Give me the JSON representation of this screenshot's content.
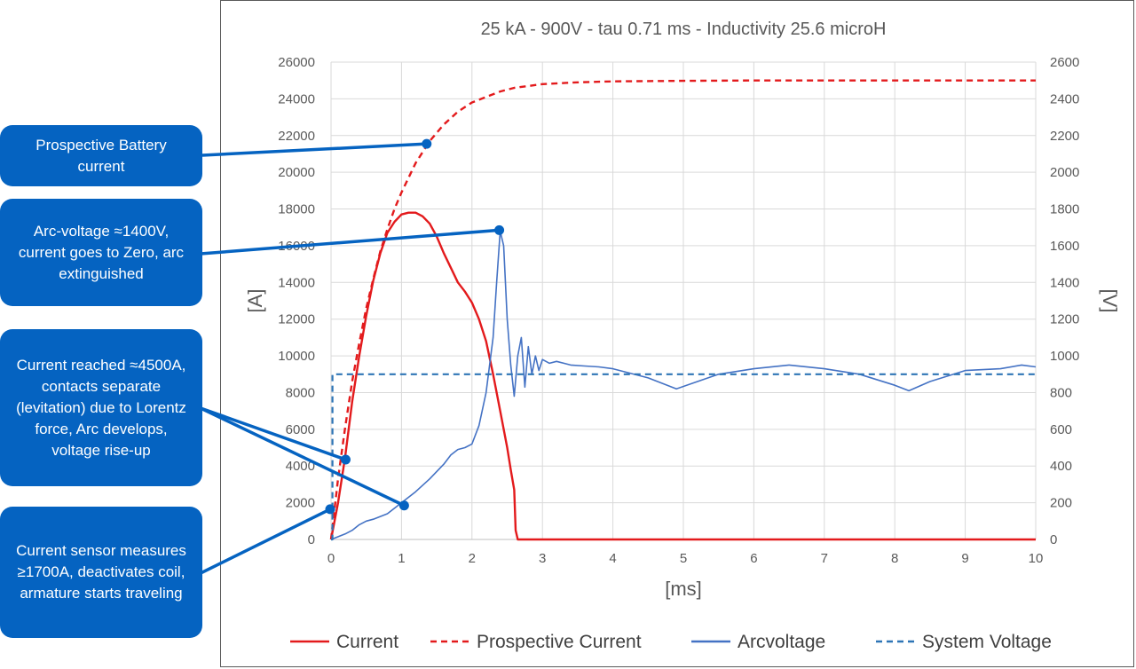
{
  "callouts": {
    "prospective": "Prospective Battery current",
    "arc_voltage": "Arc-voltage ≈1400V, current goes to Zero, arc extinguished",
    "current_reached": "Current reached ≈4500A, contacts separate (levitation) due to Lorentz force, Arc develops, voltage rise-up",
    "sensor": "Current sensor measures ≥1700A, deactivates coil, armature starts traveling"
  },
  "colors": {
    "current": "#E31A1C",
    "prospective": "#E31A1C",
    "arcvoltage": "#4472C4",
    "system": "#2E75B6",
    "callout": "#0563C1",
    "grid": "#D9D9D9"
  },
  "chart_data": {
    "type": "line",
    "title": "25 kA - 900V - tau 0.71 ms - Inductivity 25.6 microH",
    "xlabel": "[ms]",
    "ylabel": "[A]",
    "y2label": "[V]",
    "xlim": [
      0,
      10
    ],
    "ylim": [
      0,
      26000
    ],
    "y2lim": [
      0,
      2600
    ],
    "x_ticks": [
      "0",
      "1",
      "2",
      "3",
      "4",
      "5",
      "6",
      "7",
      "8",
      "9",
      "10"
    ],
    "y_ticks": [
      "0",
      "2000",
      "4000",
      "6000",
      "8000",
      "10000",
      "12000",
      "14000",
      "16000",
      "18000",
      "20000",
      "22000",
      "24000",
      "26000"
    ],
    "y2_ticks": [
      "0",
      "200",
      "400",
      "600",
      "800",
      "1000",
      "1200",
      "1400",
      "1600",
      "1800",
      "2000",
      "2200",
      "2400",
      "2600"
    ],
    "grid": "horizontal",
    "legend_position": "bottom",
    "series": [
      {
        "name": "Current",
        "axis": "left",
        "style": "solid",
        "x": [
          0,
          0.1,
          0.2,
          0.3,
          0.4,
          0.5,
          0.6,
          0.7,
          0.8,
          0.9,
          1.0,
          1.1,
          1.2,
          1.3,
          1.4,
          1.5,
          1.6,
          1.7,
          1.8,
          1.9,
          2.0,
          2.1,
          2.2,
          2.3,
          2.4,
          2.5,
          2.55,
          2.6,
          2.62,
          2.65,
          3,
          4,
          5,
          6,
          7,
          8,
          9,
          10
        ],
        "y": [
          0,
          2000,
          4500,
          7500,
          10000,
          12200,
          14100,
          15600,
          16700,
          17300,
          17700,
          17800,
          17800,
          17600,
          17200,
          16500,
          15600,
          14800,
          14000,
          13500,
          12900,
          12000,
          10800,
          9000,
          7000,
          5000,
          3800,
          2700,
          500,
          0,
          0,
          0,
          0,
          0,
          0,
          0,
          0,
          0
        ]
      },
      {
        "name": "Prospective Current",
        "axis": "left",
        "style": "dashed",
        "x": [
          0,
          0.1,
          0.2,
          0.3,
          0.4,
          0.5,
          0.6,
          0.7,
          0.8,
          0.9,
          1.0,
          1.2,
          1.4,
          1.6,
          1.8,
          2.0,
          2.2,
          2.4,
          2.6,
          2.8,
          3.0,
          3.5,
          4.0,
          5.0,
          6.0,
          7.0,
          8.0,
          9.0,
          10.0
        ],
        "y": [
          0,
          3300,
          6100,
          8600,
          10700,
          12600,
          14200,
          15700,
          16900,
          18000,
          18900,
          20500,
          21700,
          22600,
          23300,
          23800,
          24100,
          24400,
          24600,
          24700,
          24800,
          24900,
          24950,
          24980,
          25000,
          25000,
          25000,
          25000,
          25000
        ]
      },
      {
        "name": "Arcvoltage",
        "axis": "right",
        "style": "solid",
        "x": [
          0,
          0.2,
          0.3,
          0.4,
          0.5,
          0.6,
          0.8,
          1.0,
          1.2,
          1.4,
          1.6,
          1.7,
          1.8,
          1.9,
          2.0,
          2.1,
          2.2,
          2.3,
          2.35,
          2.4,
          2.45,
          2.5,
          2.55,
          2.6,
          2.65,
          2.7,
          2.75,
          2.8,
          2.85,
          2.9,
          2.95,
          3.0,
          3.1,
          3.2,
          3.4,
          3.6,
          3.8,
          4.0,
          4.5,
          4.9,
          5.2,
          5.5,
          6.0,
          6.5,
          7.0,
          7.5,
          8.0,
          8.2,
          8.5,
          9.0,
          9.5,
          9.8,
          10.0
        ],
        "y": [
          0,
          30,
          50,
          80,
          100,
          110,
          140,
          200,
          260,
          330,
          410,
          460,
          490,
          500,
          520,
          620,
          800,
          1100,
          1400,
          1680,
          1600,
          1200,
          950,
          780,
          1000,
          1100,
          830,
          1050,
          900,
          1000,
          920,
          980,
          960,
          970,
          950,
          945,
          940,
          930,
          880,
          820,
          860,
          900,
          930,
          950,
          930,
          900,
          840,
          810,
          860,
          920,
          930,
          950,
          940
        ]
      },
      {
        "name": "System Voltage",
        "axis": "right",
        "style": "dashed",
        "x": [
          0,
          0.02,
          0.02,
          10
        ],
        "y": [
          0,
          0,
          900,
          900
        ]
      }
    ]
  }
}
